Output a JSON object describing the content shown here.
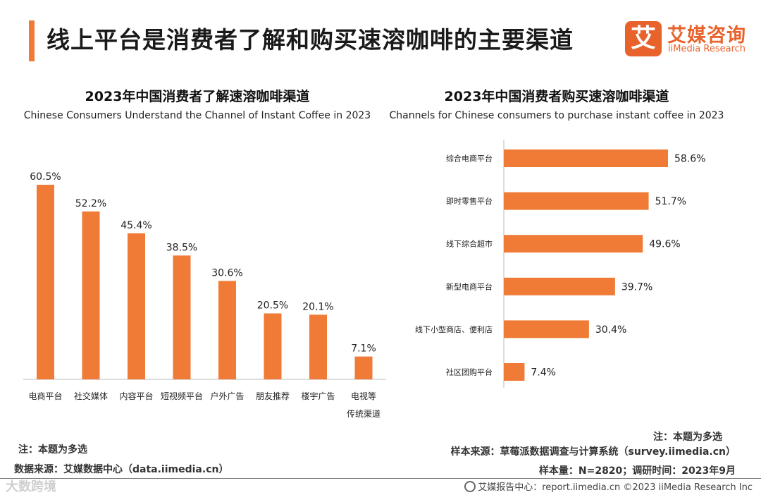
{
  "header": {
    "title": "线上平台是消费者了解和购买速溶咖啡的主要渠道",
    "logo_mark": "艾",
    "logo_cn": "艾媒咨询",
    "logo_en": "iiMedia Research"
  },
  "colors": {
    "accent": "#ef7b36",
    "bar": "#ef7b36",
    "brand": "#e8622c"
  },
  "chart_data": [
    {
      "type": "bar",
      "orientation": "vertical",
      "title": "2023年中国消费者了解速溶咖啡渠道",
      "subtitle": "Chinese Consumers Understand the Channel of Instant Coffee in 2023",
      "categories": [
        "电商平台",
        "社交媒体",
        "内容平台",
        "短视频平台",
        "户外广告",
        "朋友推荐",
        "楼宇广告",
        "电视等\n传统渠道"
      ],
      "values": [
        60.5,
        52.2,
        45.4,
        38.5,
        30.6,
        20.5,
        20.1,
        7.1
      ],
      "labels": [
        "60.5%",
        "52.2%",
        "45.4%",
        "38.5%",
        "30.6%",
        "20.5%",
        "20.1%",
        "7.1%"
      ],
      "unit": "%",
      "ylim": [
        0,
        60.5
      ],
      "grid": false,
      "legend": "none"
    },
    {
      "type": "bar",
      "orientation": "horizontal",
      "title": "2023年中国消费者购买速溶咖啡渠道",
      "subtitle": "Channels for Chinese consumers to purchase instant coffee in 2023",
      "categories": [
        "综合电商平台",
        "即时零售平台",
        "线下综合超市",
        "新型电商平台",
        "线下小型商店、便利店",
        "社区团购平台"
      ],
      "values": [
        58.6,
        51.7,
        49.6,
        39.7,
        30.4,
        7.4
      ],
      "labels": [
        "58.6%",
        "51.7%",
        "49.6%",
        "39.7%",
        "30.4%",
        "7.4%"
      ],
      "unit": "%",
      "xlim": [
        0,
        58.6
      ],
      "grid": false,
      "legend": "none"
    }
  ],
  "notes": {
    "left_note": "注：本题为多选",
    "left_source": "数据来源：艾媒数据中心（data.iimedia.cn）",
    "right_note": "注：本题为多选",
    "right_sample_source": "样本来源：草莓派数据调查与计算系统（survey.iimedia.cn）",
    "right_sample_info": "样本量：N=2820；调研时间：2023年9月"
  },
  "footer": {
    "text": "艾媒报告中心：report.iimedia.cn  ©2023  iiMedia Research  Inc",
    "watermark": "大数跨境"
  }
}
